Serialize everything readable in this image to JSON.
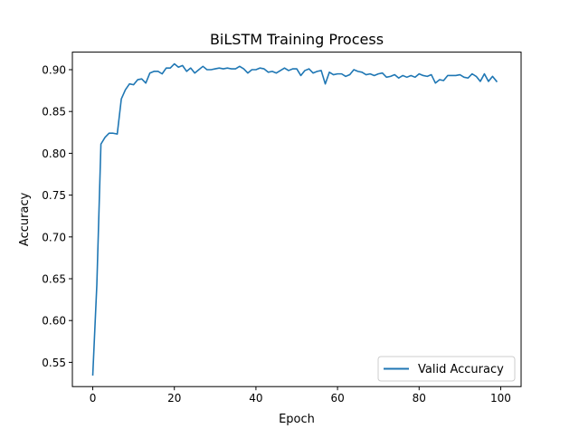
{
  "chart_data": {
    "type": "line",
    "title": "BiLSTM Training Process",
    "xlabel": "Epoch",
    "ylabel": "Accuracy",
    "xlim": [
      -5,
      105
    ],
    "ylim": [
      0.521,
      0.921
    ],
    "xticks": [
      0,
      20,
      40,
      60,
      80,
      100
    ],
    "xtick_labels": [
      "0",
      "20",
      "40",
      "60",
      "80",
      "100"
    ],
    "yticks": [
      0.55,
      0.6,
      0.65,
      0.7,
      0.75,
      0.8,
      0.85,
      0.9
    ],
    "ytick_labels": [
      "0.55",
      "0.60",
      "0.65",
      "0.70",
      "0.75",
      "0.80",
      "0.85",
      "0.90"
    ],
    "grid": false,
    "legend_position": "lower-right",
    "series": [
      {
        "name": "Valid Accuracy",
        "color": "#1f77b4",
        "x": [
          0,
          1,
          2,
          3,
          4,
          5,
          6,
          7,
          8,
          9,
          10,
          11,
          12,
          13,
          14,
          15,
          16,
          17,
          18,
          19,
          20,
          21,
          22,
          23,
          24,
          25,
          26,
          27,
          28,
          29,
          30,
          31,
          32,
          33,
          34,
          35,
          36,
          37,
          38,
          39,
          40,
          41,
          42,
          43,
          44,
          45,
          46,
          47,
          48,
          49,
          50,
          51,
          52,
          53,
          54,
          55,
          56,
          57,
          58,
          59,
          60,
          61,
          62,
          63,
          64,
          65,
          66,
          67,
          68,
          69,
          70,
          71,
          72,
          73,
          74,
          75,
          76,
          77,
          78,
          79,
          80,
          81,
          82,
          83,
          84,
          85,
          86,
          87,
          88,
          89,
          90,
          91,
          92,
          93,
          94,
          95,
          96,
          97,
          98,
          99
        ],
        "y": [
          0.535,
          0.643,
          0.811,
          0.819,
          0.824,
          0.824,
          0.823,
          0.865,
          0.876,
          0.883,
          0.882,
          0.888,
          0.889,
          0.884,
          0.896,
          0.898,
          0.898,
          0.895,
          0.902,
          0.902,
          0.907,
          0.903,
          0.905,
          0.898,
          0.902,
          0.896,
          0.9,
          0.904,
          0.9,
          0.9,
          0.901,
          0.902,
          0.901,
          0.902,
          0.901,
          0.901,
          0.904,
          0.901,
          0.896,
          0.9,
          0.9,
          0.902,
          0.901,
          0.897,
          0.898,
          0.896,
          0.899,
          0.902,
          0.899,
          0.901,
          0.901,
          0.893,
          0.899,
          0.901,
          0.896,
          0.898,
          0.899,
          0.883,
          0.897,
          0.894,
          0.895,
          0.895,
          0.892,
          0.894,
          0.9,
          0.898,
          0.897,
          0.894,
          0.895,
          0.893,
          0.895,
          0.896,
          0.891,
          0.892,
          0.894,
          0.89,
          0.893,
          0.891,
          0.893,
          0.891,
          0.895,
          0.893,
          0.892,
          0.894,
          0.884,
          0.888,
          0.887,
          0.893,
          0.893,
          0.893,
          0.894,
          0.891,
          0.89,
          0.895,
          0.892,
          0.886,
          0.895,
          0.886,
          0.892,
          0.886
        ]
      }
    ]
  }
}
